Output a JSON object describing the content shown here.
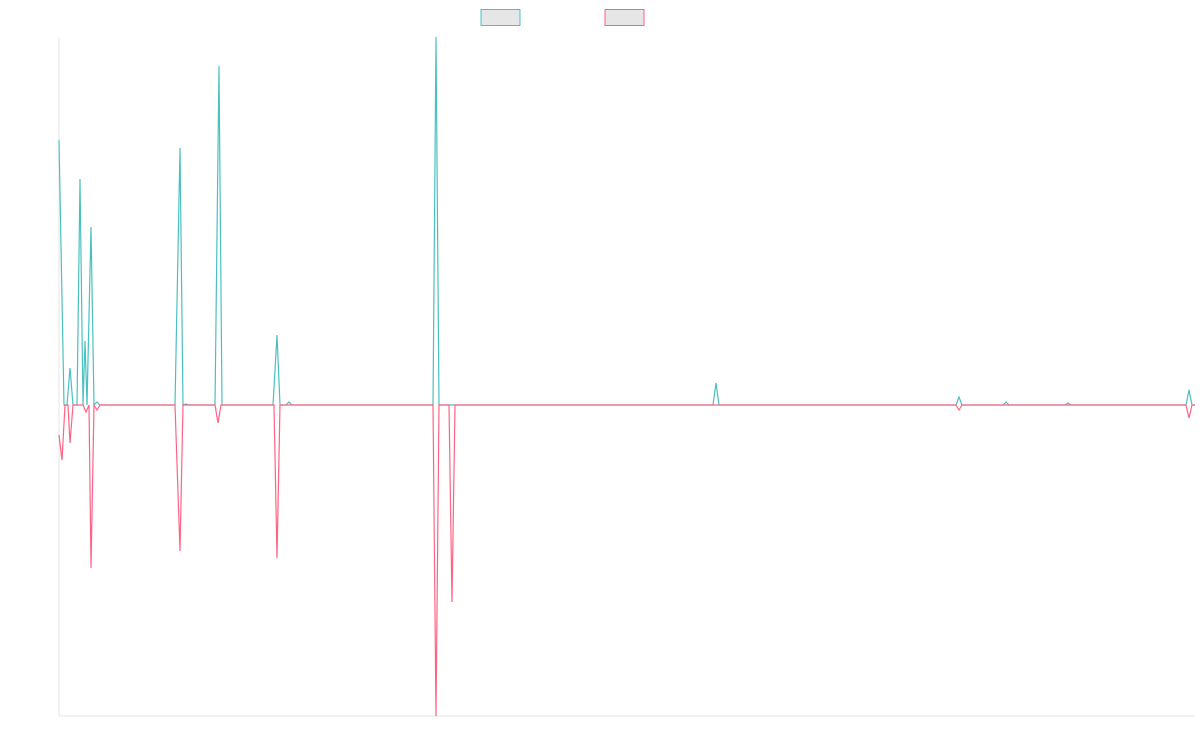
{
  "chart_data": {
    "type": "line",
    "xlim": [
      0,
      1136
    ],
    "ylim": [
      -311,
      368
    ],
    "series": [
      {
        "color": "#4bc0c0",
        "x": [
          0,
          5,
          8,
          11,
          14,
          18,
          21,
          24,
          26,
          28,
          32,
          35,
          38,
          41,
          116,
          121,
          124,
          127,
          130,
          156,
          160,
          163,
          214,
          218,
          221,
          227,
          230,
          233,
          374,
          377,
          380,
          654,
          657,
          660,
          897,
          900,
          903,
          944,
          947,
          950,
          1006,
          1009,
          1012,
          1127,
          1130,
          1133,
          1136
        ],
        "values": [
          265,
          0,
          0,
          37,
          0,
          0,
          226,
          0,
          64,
          0,
          178,
          0,
          3,
          0,
          0,
          257,
          0,
          1,
          0,
          0,
          339,
          0,
          0,
          70,
          0,
          0,
          3,
          0,
          0,
          368,
          0,
          0,
          22,
          0,
          0,
          8,
          0,
          0,
          3,
          0,
          0,
          2,
          0,
          0,
          15,
          0,
          0
        ]
      },
      {
        "color": "#ff6384",
        "x": [
          0,
          3,
          6,
          9,
          11,
          14,
          24,
          27,
          30,
          32,
          35,
          38,
          41,
          116,
          121,
          124,
          156,
          159,
          162,
          215,
          218,
          221,
          374,
          377,
          380,
          390,
          393,
          396,
          897,
          900,
          903,
          1127,
          1130,
          1133,
          1136
        ],
        "values": [
          -30,
          -55,
          0,
          0,
          -38,
          0,
          0,
          -7,
          0,
          -163,
          0,
          -5,
          0,
          0,
          -146,
          0,
          0,
          -18,
          0,
          0,
          -153,
          0,
          0,
          -311,
          0,
          0,
          -197,
          0,
          0,
          -5,
          0,
          0,
          -13,
          0,
          0
        ]
      }
    ]
  }
}
